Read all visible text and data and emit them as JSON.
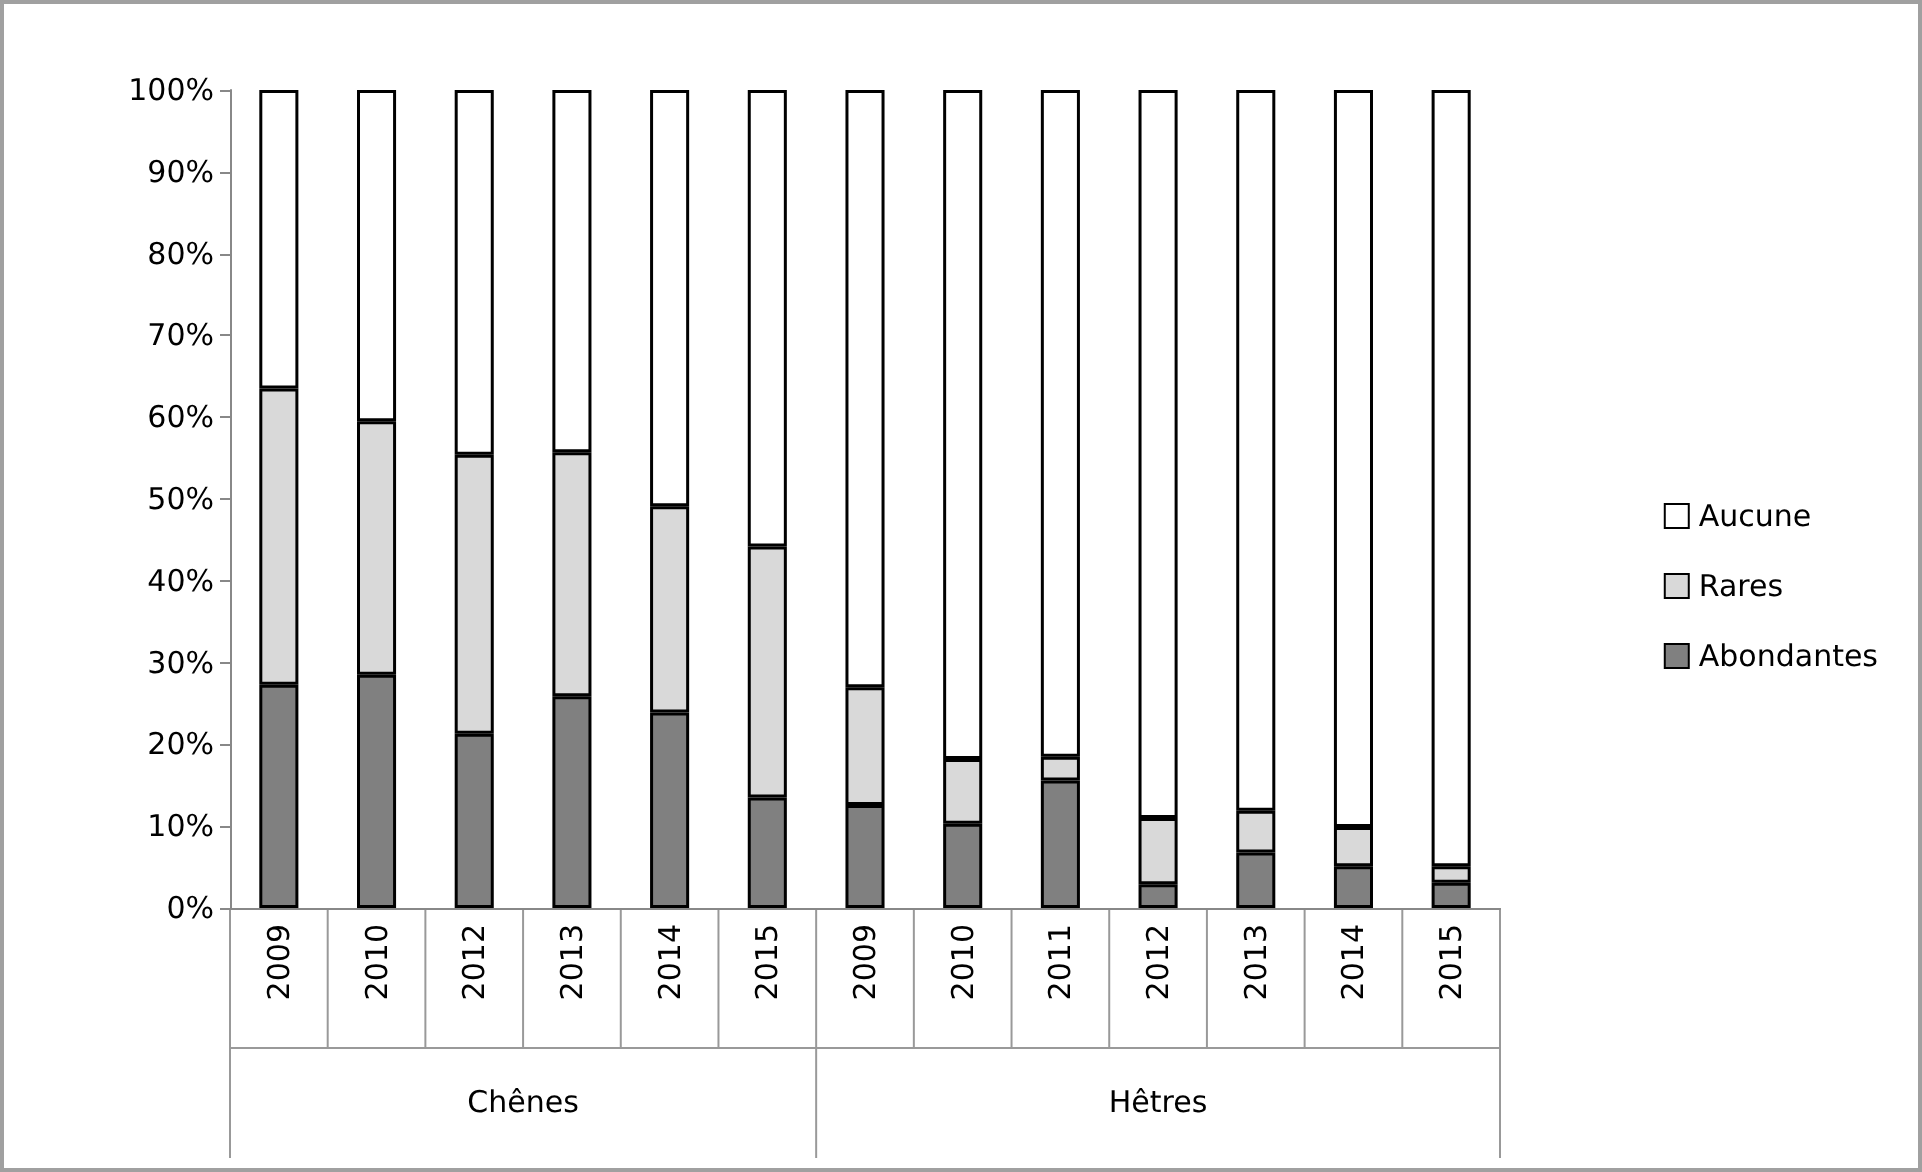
{
  "chart_data": {
    "type": "bar",
    "stacked": true,
    "categories": [
      "2009",
      "2010",
      "2012",
      "2013",
      "2014",
      "2015",
      "2009",
      "2010",
      "2011",
      "2012",
      "2013",
      "2014",
      "2015"
    ],
    "series": [
      {
        "name": "Abondantes",
        "color": "#808080",
        "values": [
          27.3,
          28.5,
          21.3,
          25.9,
          23.9,
          13.5,
          12.6,
          10.3,
          15.6,
          2.9,
          6.8,
          5.1,
          3.1
        ]
      },
      {
        "name": "Rares",
        "color": "#d9d9d9",
        "values": [
          36.2,
          31.0,
          34.1,
          29.8,
          25.2,
          30.7,
          14.4,
          7.9,
          2.9,
          8.1,
          5.1,
          4.8,
          2.0
        ]
      },
      {
        "name": "Aucune",
        "color": "#ffffff",
        "values": [
          36.5,
          40.5,
          44.6,
          44.3,
          50.9,
          55.8,
          73.0,
          81.8,
          81.5,
          89.0,
          88.1,
          90.1,
          94.9
        ]
      }
    ],
    "ylim": [
      0,
      100
    ],
    "yticks": [
      {
        "value": 0,
        "label": "0%"
      },
      {
        "value": 10,
        "label": "10%"
      },
      {
        "value": 20,
        "label": "20%"
      },
      {
        "value": 30,
        "label": "30%"
      },
      {
        "value": 40,
        "label": "40%"
      },
      {
        "value": 50,
        "label": "50%"
      },
      {
        "value": 60,
        "label": "60%"
      },
      {
        "value": 70,
        "label": "70%"
      },
      {
        "value": 80,
        "label": "80%"
      },
      {
        "value": 90,
        "label": "90%"
      },
      {
        "value": 100,
        "label": "100%"
      }
    ],
    "annotations": [
      "Chênes",
      "Hêtres"
    ],
    "legend": "right",
    "grid": false
  }
}
